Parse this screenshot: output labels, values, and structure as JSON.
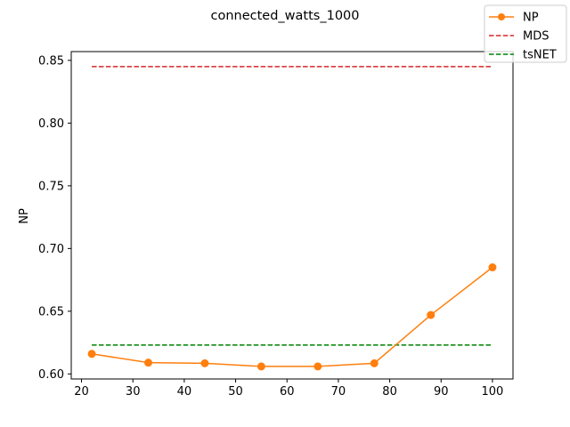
{
  "chart_data": {
    "type": "line",
    "title": "connected_watts_1000",
    "xlabel": "",
    "ylabel": "NP",
    "xlim": [
      18,
      104
    ],
    "ylim": [
      0.596,
      0.857
    ],
    "xticks": [
      20,
      30,
      40,
      50,
      60,
      70,
      80,
      90,
      100
    ],
    "yticks": [
      0.6,
      0.65,
      0.7,
      0.75,
      0.8,
      0.85
    ],
    "xtick_labels": [
      "20",
      "30",
      "40",
      "50",
      "60",
      "70",
      "80",
      "90",
      "100"
    ],
    "ytick_labels": [
      "0.60",
      "0.65",
      "0.70",
      "0.75",
      "0.80",
      "0.85"
    ],
    "legend_position": "top-right",
    "series": [
      {
        "name": "NP",
        "style": "solid-marker",
        "color": "#ff7f0e",
        "x": [
          22,
          33,
          44,
          55,
          66,
          77,
          88,
          100
        ],
        "y": [
          0.616,
          0.609,
          0.6085,
          0.606,
          0.606,
          0.6085,
          0.647,
          0.685
        ]
      },
      {
        "name": "MDS",
        "style": "dashed",
        "color": "#d62728",
        "x": [
          22,
          100
        ],
        "y": [
          0.845,
          0.845
        ]
      },
      {
        "name": "tsNET",
        "style": "dashed",
        "color": "#008000",
        "x": [
          22,
          100
        ],
        "y": [
          0.623,
          0.623
        ]
      }
    ]
  }
}
